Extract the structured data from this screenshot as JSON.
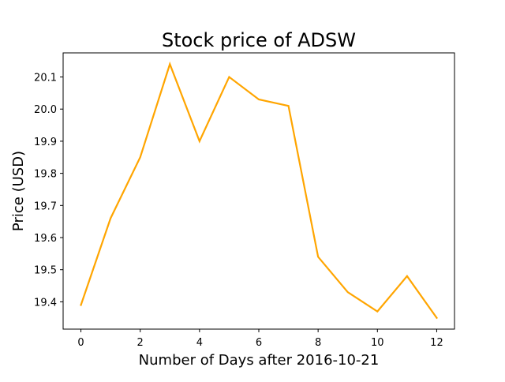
{
  "chart_data": {
    "type": "line",
    "title": "Stock price of ADSW",
    "xlabel": "Number of Days after 2016-10-21",
    "ylabel": "Price (USD)",
    "xlim": [
      -0.6,
      12.6
    ],
    "ylim": [
      19.315,
      20.175
    ],
    "x_ticks": [
      0,
      2,
      4,
      6,
      8,
      10,
      12
    ],
    "y_ticks": [
      19.4,
      19.5,
      19.6,
      19.7,
      19.8,
      19.9,
      20.0,
      20.1
    ],
    "grid": false,
    "series": [
      {
        "color": "#ffa500",
        "x": [
          0,
          1,
          2,
          3,
          4,
          5,
          6,
          7,
          8,
          9,
          10,
          11,
          12
        ],
        "y": [
          19.39,
          19.66,
          19.85,
          20.14,
          19.9,
          20.1,
          20.03,
          20.01,
          19.54,
          19.43,
          19.37,
          19.48,
          19.35
        ]
      }
    ]
  }
}
